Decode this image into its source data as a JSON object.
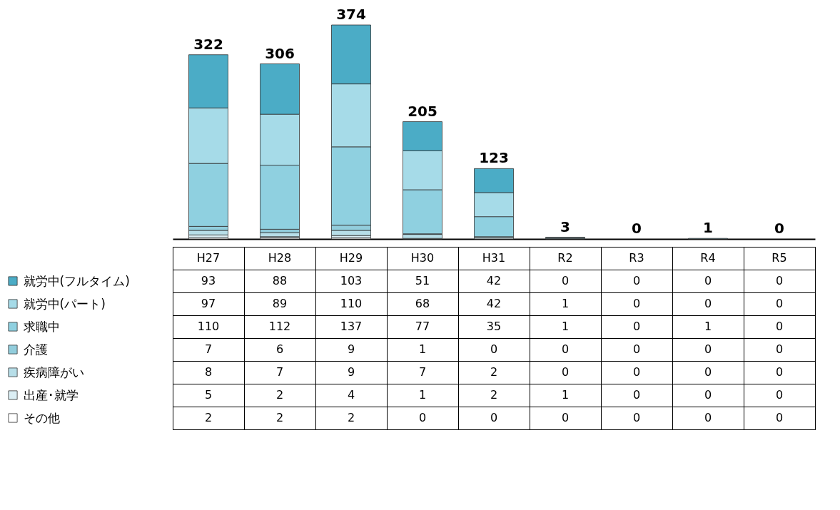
{
  "chart_data": {
    "type": "bar",
    "stacked": true,
    "data_labels": true,
    "legend": "bottom left",
    "categories": [
      "H27",
      "H28",
      "H29",
      "H30",
      "H31",
      "R2",
      "R3",
      "R4",
      "R5"
    ],
    "series": [
      {
        "name": "その他",
        "color": "#ffffff",
        "values": [
          2,
          2,
          2,
          0,
          0,
          0,
          0,
          0,
          0
        ]
      },
      {
        "name": "出産･就学",
        "color": "#dbeef4",
        "values": [
          5,
          2,
          4,
          1,
          2,
          1,
          0,
          0,
          0
        ]
      },
      {
        "name": "疾病障がい",
        "color": "#b7dee8",
        "values": [
          8,
          7,
          9,
          7,
          2,
          0,
          0,
          0,
          0
        ]
      },
      {
        "name": "介護",
        "color": "#92cddc",
        "values": [
          7,
          6,
          9,
          1,
          0,
          0,
          0,
          0,
          0
        ]
      },
      {
        "name": "求職中",
        "color": "#8fd0e0",
        "values": [
          110,
          112,
          137,
          77,
          35,
          1,
          0,
          1,
          0
        ]
      },
      {
        "name": "就労中(パート)",
        "color": "#a6dbe8",
        "values": [
          97,
          89,
          110,
          68,
          42,
          1,
          0,
          0,
          0
        ]
      },
      {
        "name": "就労中(フルタイム)",
        "color": "#4bacc6",
        "values": [
          93,
          88,
          103,
          51,
          42,
          0,
          0,
          0,
          0
        ]
      }
    ],
    "totals": [
      "322",
      "306",
      "374",
      "205",
      "123",
      "3",
      "0",
      "1",
      "0"
    ]
  }
}
